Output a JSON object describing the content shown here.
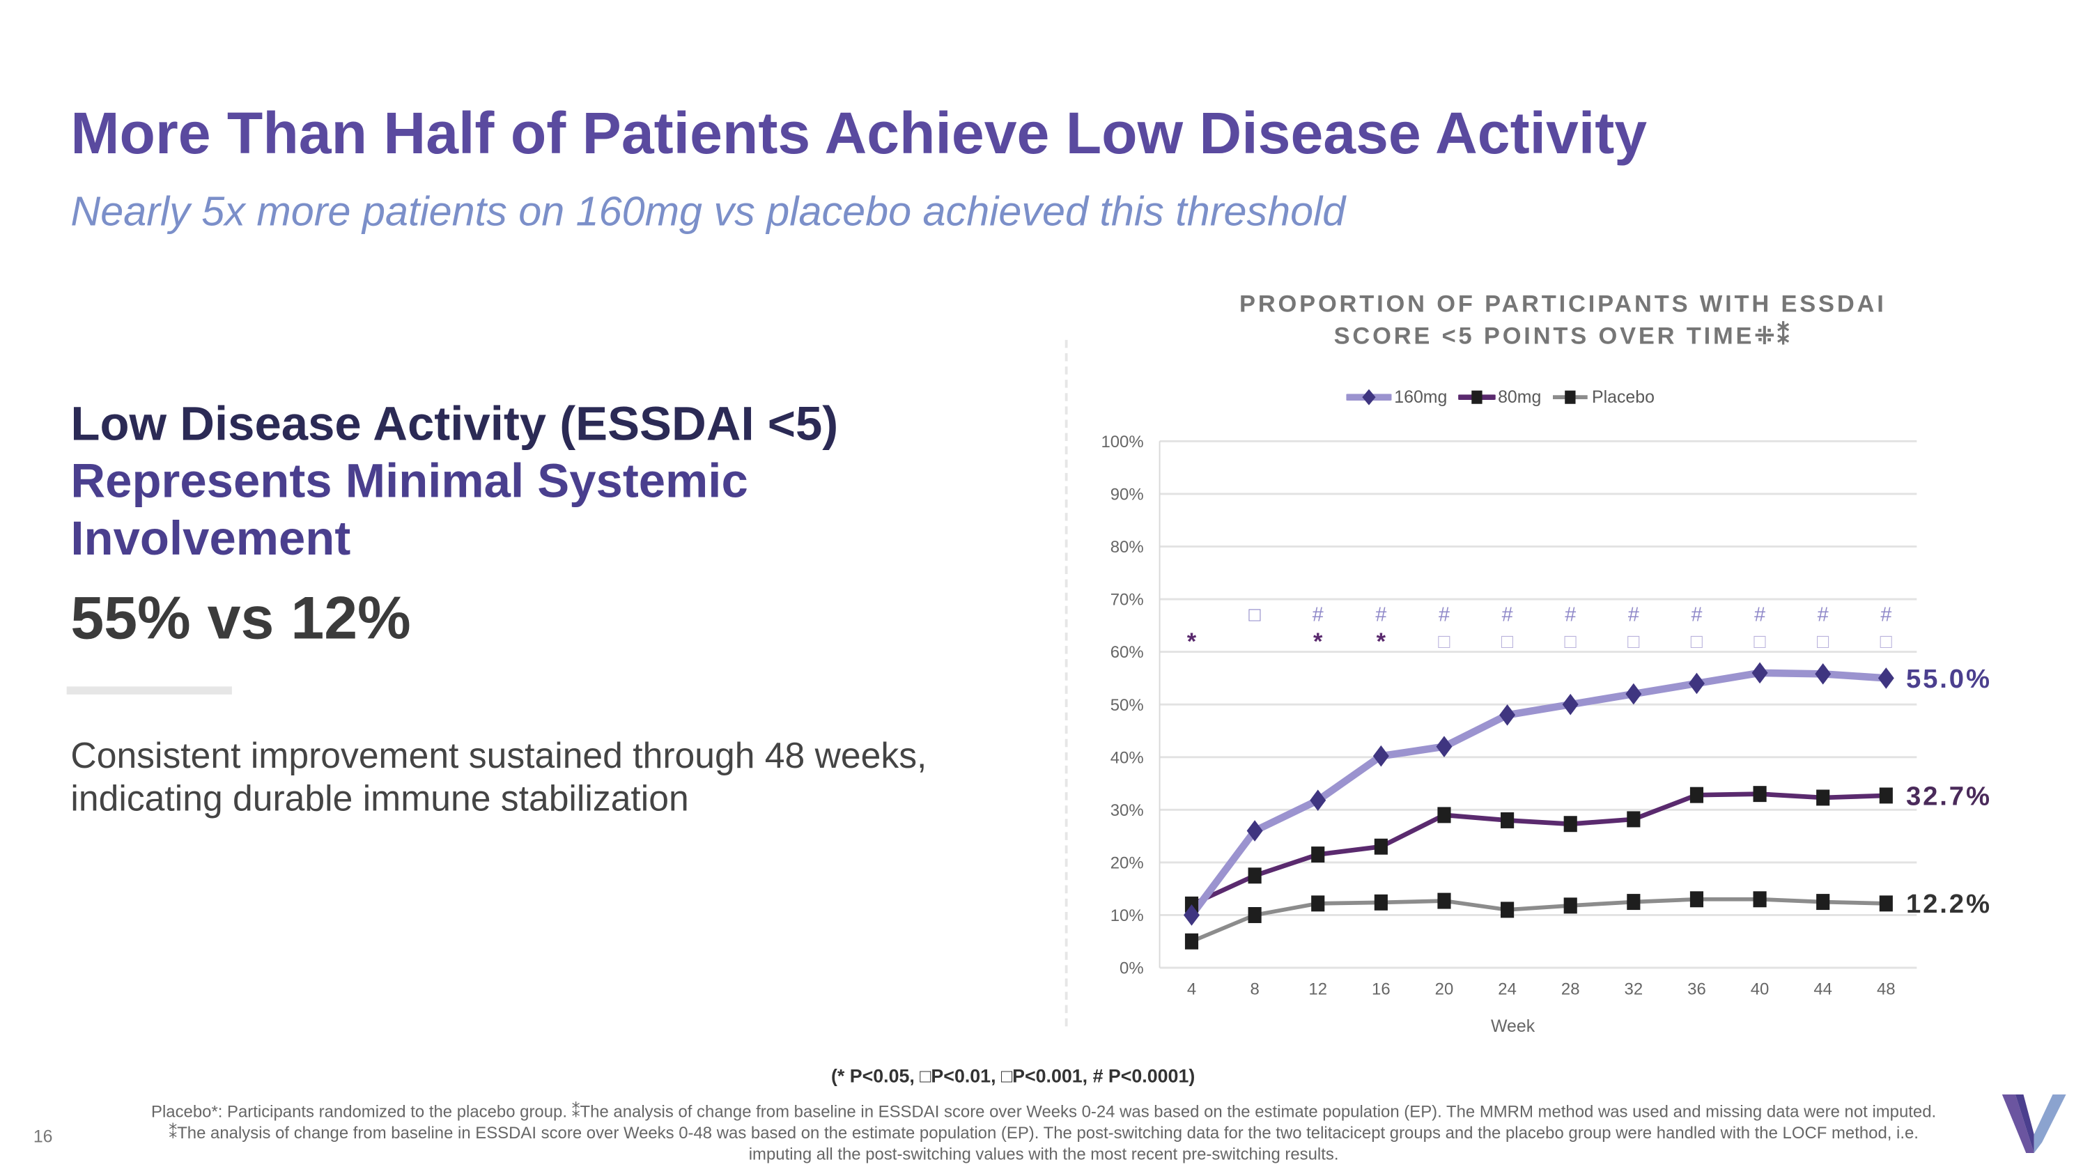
{
  "slide": {
    "title": "More Than Half of Patients Achieve Low Disease Activity",
    "subtitle": "Nearly 5x more patients on 160mg vs placebo achieved this threshold",
    "left_heading_line1": "Low Disease Activity (ESSDAI <5)",
    "left_heading_line2": "Represents Minimal Systemic",
    "left_heading_line3": "Involvement",
    "stat": "55% vs 12%",
    "body": "Consistent improvement sustained through 48 weeks, indicating durable immune stabilization",
    "significance_key": "(* P<0.05, □P<0.01, □P<0.001, # P<0.0001)",
    "footnote": "Placebo*: Participants randomized to the placebo group. ⁑The analysis of change from baseline in ESSDAI score over Weeks 0-24 was based on the estimate population (EP). The MMRM method was used and missing data were not imputed. ⁑The analysis of change from baseline in ESSDAI score over Weeks 0-48 was based on the estimate population (EP). The post-switching data for the two telitacicept groups and the placebo group were handled with the LOCF method, i.e. imputing all the post-switching values with the most recent pre-switching results.",
    "page_number": "16"
  },
  "colors": {
    "title": "#5a4a9f",
    "subtitle": "#7b8fc9",
    "s160_line": "#9b93cf",
    "s160_marker": "#3f3580",
    "s80_line": "#5a2a6e",
    "placebo_line": "#8c8c8c",
    "marker_square": "#1e1e1e"
  },
  "chart_data": {
    "type": "line",
    "title": "PROPORTION OF PARTICIPANTS WITH ESSDAI SCORE <5 POINTS OVER TIME⁜⁑",
    "xlabel": "Week",
    "ylabel": "",
    "x": [
      4,
      8,
      12,
      16,
      20,
      24,
      28,
      32,
      36,
      40,
      44,
      48
    ],
    "ylim": [
      0,
      100
    ],
    "yticks": [
      "0%",
      "10%",
      "20%",
      "30%",
      "40%",
      "50%",
      "60%",
      "70%",
      "80%",
      "90%",
      "100%"
    ],
    "grid": true,
    "legend": "top",
    "series": [
      {
        "name": "160mg",
        "marker": "diamond",
        "values": [
          10,
          26,
          31.8,
          40.2,
          42,
          48,
          50,
          52,
          54,
          56,
          55.8,
          55.0
        ],
        "end_label": "55.0%"
      },
      {
        "name": "80mg",
        "marker": "square",
        "values": [
          12,
          17.5,
          21.5,
          23,
          29,
          28,
          27.3,
          28.2,
          32.8,
          33,
          32.3,
          32.7
        ],
        "end_label": "32.7%"
      },
      {
        "name": "Placebo",
        "marker": "square",
        "values": [
          5,
          10,
          12.2,
          12.4,
          12.7,
          11,
          11.8,
          12.5,
          13,
          13,
          12.5,
          12.2
        ],
        "end_label": "12.2%"
      }
    ],
    "significance_160mg": [
      "",
      "□",
      "#",
      "#",
      "#",
      "#",
      "#",
      "#",
      "#",
      "#",
      "#",
      "#"
    ],
    "significance_80mg": [
      "*",
      "",
      "*",
      "*",
      "□",
      "□",
      "□",
      "□",
      "□",
      "□",
      "□",
      "□"
    ]
  }
}
